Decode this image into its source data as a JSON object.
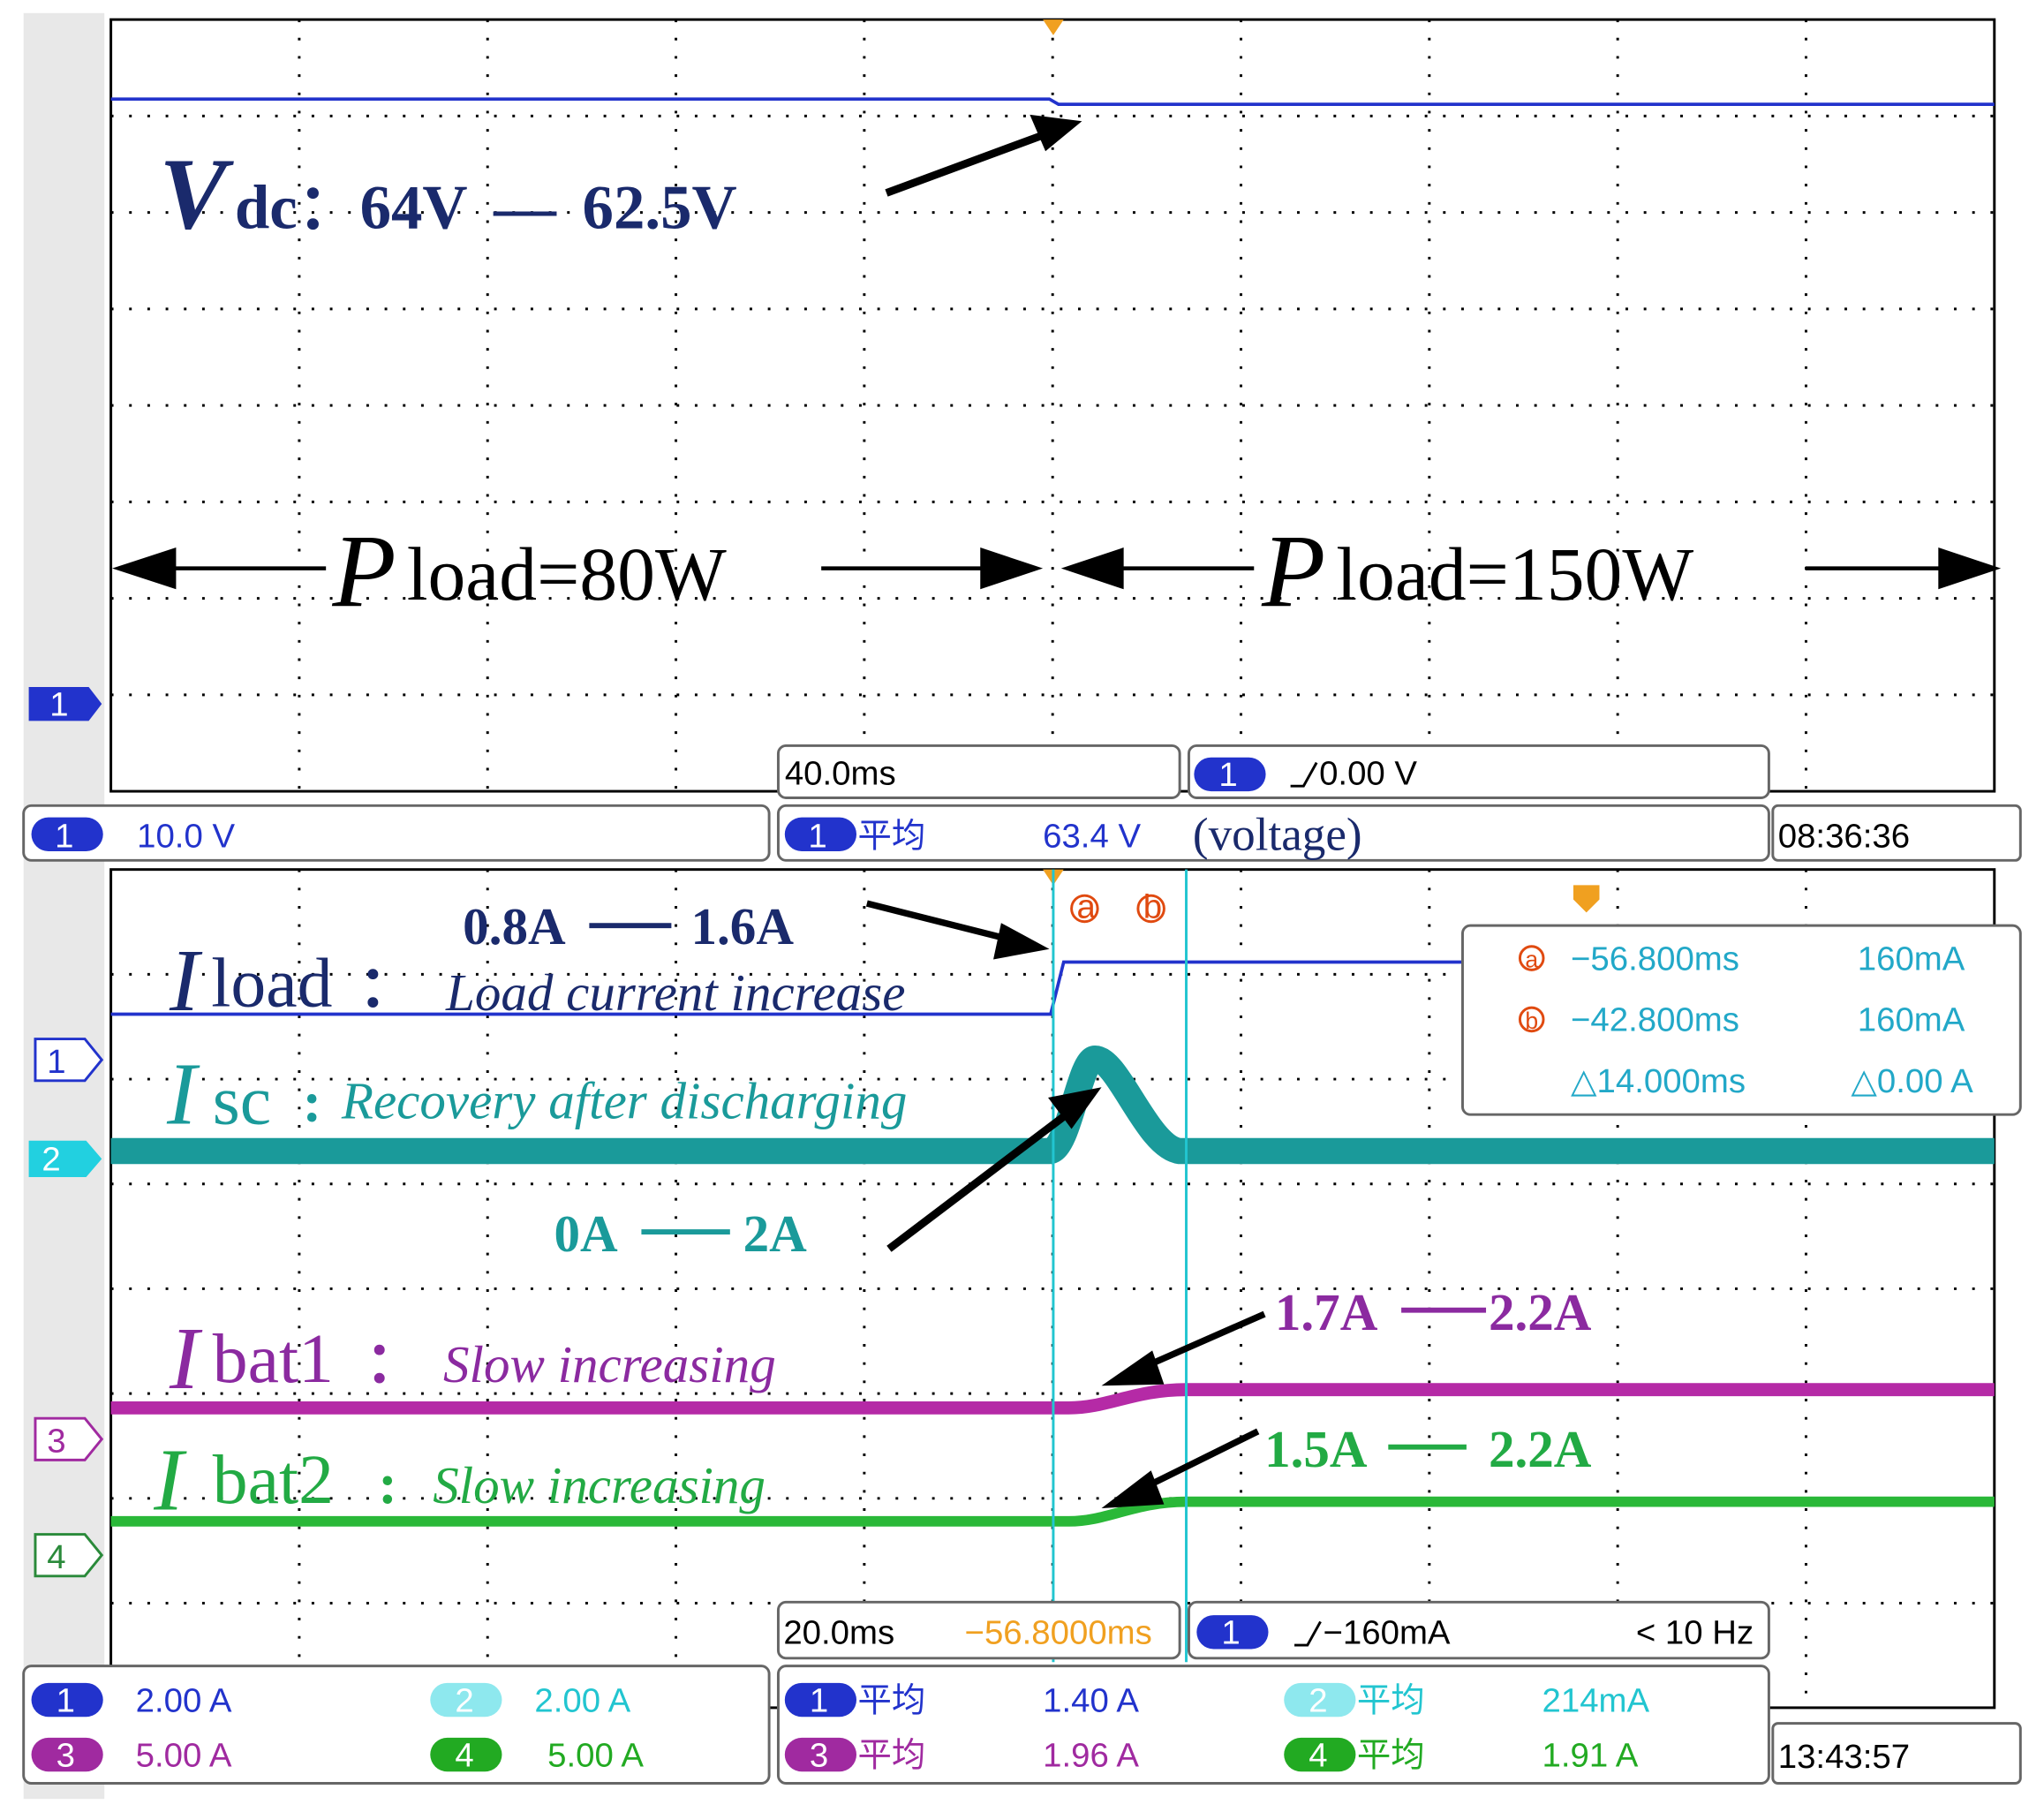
{
  "top": {
    "vdc": {
      "symbol": "V",
      "sub": "dc",
      "text": "：64V",
      "sep": "—",
      "value": "62.5V"
    },
    "load_left": {
      "symbol": "P",
      "text": "load=80W"
    },
    "load_right": {
      "symbol": "P",
      "text": "load=150W"
    },
    "channel_marker": "1",
    "timebase": "40.0ms",
    "trigger": {
      "channel": "1",
      "level": "0.00 V"
    },
    "status": {
      "scale": {
        "channel": "1",
        "value": "10.0 V"
      },
      "measure": {
        "channel": "1",
        "label": "平均",
        "value": "63.4 V"
      },
      "note": "(voltage)",
      "time": "08:36:36"
    }
  },
  "bottom": {
    "load": {
      "from": "0.8A",
      "to": "1.6A",
      "symbol": "I",
      "sub": "load",
      "colon": "：",
      "desc": "Load current increase"
    },
    "sc": {
      "symbol": "I",
      "sub": "sc",
      "colon": ":",
      "desc": "Recovery after discharging",
      "from": "0A",
      "sep": "—",
      "to": "2A"
    },
    "bat1": {
      "symbol": "I",
      "sub": "bat1",
      "colon": "：",
      "desc": "Slow increasing",
      "from": "1.7A",
      "to": "2.2A"
    },
    "bat2": {
      "symbol": "I",
      "sub": "bat2",
      "colon": ":",
      "desc": "Slow increasing",
      "from": "1.5A",
      "to": "2.2A"
    },
    "cursors": [
      "a",
      "b"
    ],
    "cursor_readout": [
      [
        "−56.800ms",
        "160mA"
      ],
      [
        "−42.800ms",
        "160mA"
      ],
      [
        "△14.000ms",
        "△0.00 A"
      ]
    ],
    "channel_markers": [
      "1",
      "2",
      "3",
      "4"
    ],
    "timebase": "20.0ms",
    "delay": "−56.8000ms",
    "trigger": {
      "channel": "1",
      "level": "−160mA",
      "rate": "< 10 Hz"
    },
    "scales": [
      {
        "channel": "1",
        "value": "2.00 A"
      },
      {
        "channel": "2",
        "value": "2.00 A"
      },
      {
        "channel": "3",
        "value": "5.00 A"
      },
      {
        "channel": "4",
        "value": "5.00 A"
      }
    ],
    "measures": [
      {
        "channel": "1",
        "label": "平均",
        "value": "1.40 A"
      },
      {
        "channel": "2",
        "label": "平均",
        "value": "214mA"
      },
      {
        "channel": "3",
        "label": "平均",
        "value": "1.96 A"
      },
      {
        "channel": "4",
        "label": "平均",
        "value": "1.91 A"
      }
    ],
    "time": "13:43:57"
  }
}
